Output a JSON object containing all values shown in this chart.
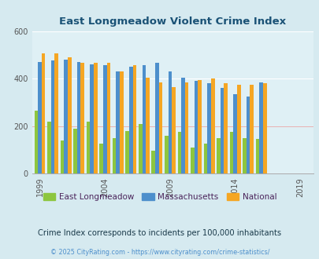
{
  "title": "East Longmeadow Violent Crime Index",
  "subtitle": "Crime Index corresponds to incidents per 100,000 inhabitants",
  "footer": "© 2025 CityRating.com - https://www.cityrating.com/crime-statistics/",
  "years": [
    1999,
    2000,
    2001,
    2002,
    2003,
    2004,
    2005,
    2006,
    2007,
    2008,
    2009,
    2010,
    2011,
    2012,
    2013,
    2014,
    2015,
    2016
  ],
  "east_longmeadow": [
    265,
    220,
    140,
    190,
    220,
    125,
    150,
    180,
    210,
    95,
    160,
    175,
    110,
    125,
    150,
    175,
    150,
    145
  ],
  "massachusetts": [
    470,
    475,
    480,
    470,
    460,
    455,
    430,
    450,
    455,
    465,
    430,
    405,
    390,
    380,
    360,
    335,
    325,
    385
  ],
  "national": [
    505,
    505,
    490,
    465,
    465,
    465,
    430,
    455,
    405,
    385,
    365,
    385,
    395,
    400,
    380,
    375,
    375,
    380
  ],
  "el_color": "#8dc63f",
  "ma_color": "#4d8fcc",
  "nat_color": "#f5a623",
  "bg_color": "#d6eaf0",
  "plot_bg": "#dff0f5",
  "title_color": "#1a5276",
  "legend_label_color": "#4a235a",
  "subtitle_color": "#1a3a4a",
  "footer_color": "#4d8fcc",
  "ylim": [
    0,
    600
  ],
  "yticks": [
    0,
    200,
    400,
    600
  ],
  "xtick_years": [
    1999,
    2004,
    2009,
    2014,
    2019
  ],
  "xlim_left": 1998.4,
  "xlim_right": 2020.0,
  "bar_width": 0.28
}
